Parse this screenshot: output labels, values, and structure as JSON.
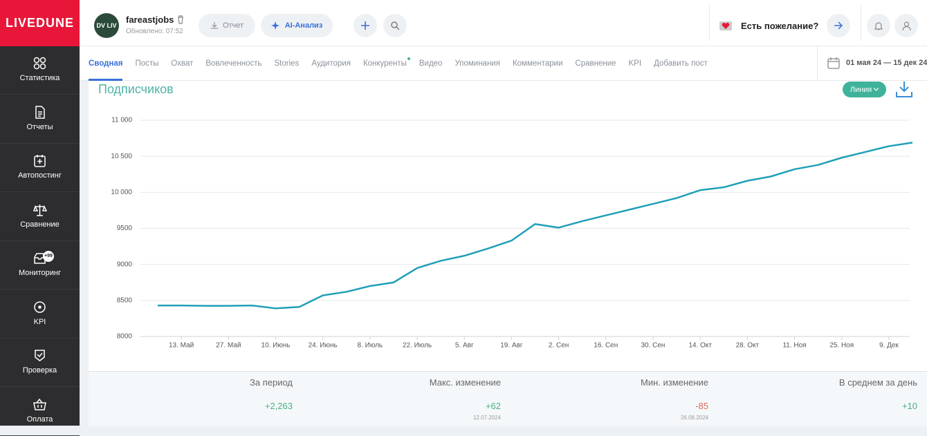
{
  "sidebar": {
    "logo": "LIVEDUNE",
    "items": [
      "Статистика",
      "Отчеты",
      "Автопостинг",
      "Сравнение",
      "Мониторинг",
      "KPI",
      "Проверка",
      "Оплата"
    ],
    "badge": "+99"
  },
  "header": {
    "avatar": "DV LIV",
    "account": "fareastjobs",
    "updated": "Обновлено: 07:52",
    "report_button": "Отчет",
    "ai_button": "AI-Анализ",
    "feedback": "Есть пожелание?"
  },
  "tabs": [
    "Сводная",
    "Посты",
    "Охват",
    "Вовлеченность",
    "Stories",
    "Аудитория",
    "Конкуренты",
    "Видео",
    "Упоминания",
    "Комментарии",
    "Сравнение",
    "KPI",
    "Добавить пост"
  ],
  "date_range": "01 мая 24 — 15 дек 24",
  "chart_mode": "Линия",
  "chart_data": {
    "type": "line",
    "title": "Подписчиков",
    "categories": [
      null,
      "13. Май",
      null,
      "27. Май",
      null,
      "10. Июнь",
      null,
      "24. Июнь",
      null,
      "8. Июль",
      null,
      "22. Июль",
      null,
      "5. Авг",
      null,
      "19. Авг",
      null,
      "2. Сен",
      null,
      "16. Сен",
      null,
      "30. Сен",
      null,
      "14. Окт",
      null,
      "28. Окт",
      null,
      "11. Ноя",
      null,
      "25. Ноя",
      null,
      "9. Дек",
      null
    ],
    "series": [
      {
        "color": "#1f9fb8",
        "values": [
          8430,
          8430,
          8425,
          8425,
          8430,
          8390,
          8410,
          8570,
          8620,
          8700,
          8750,
          8950,
          9050,
          9120,
          9220,
          9330,
          9560,
          9510,
          9600,
          9680,
          9760,
          9840,
          9920,
          10030,
          10070,
          10160,
          10220,
          10320,
          10380,
          10480,
          10560,
          10640,
          10690
        ]
      }
    ],
    "ylim": [
      8000,
      11000
    ],
    "yticks": [
      8000,
      8500,
      9000,
      9500,
      {
        "value": 10000,
        "label": "10 000"
      },
      {
        "value": 10500,
        "label": "10 500"
      },
      {
        "value": 11000,
        "label": "11 000"
      }
    ],
    "grid": true
  },
  "stats": [
    {
      "label": "За период",
      "value": "+2,263"
    },
    {
      "label": "Макс. изменение",
      "value": "+62",
      "date": "12.07.2024"
    },
    {
      "label": "Мин. изменение",
      "value": "-85",
      "date": "26.08.2024"
    },
    {
      "label": "В среднем за день",
      "value": "+10"
    }
  ]
}
